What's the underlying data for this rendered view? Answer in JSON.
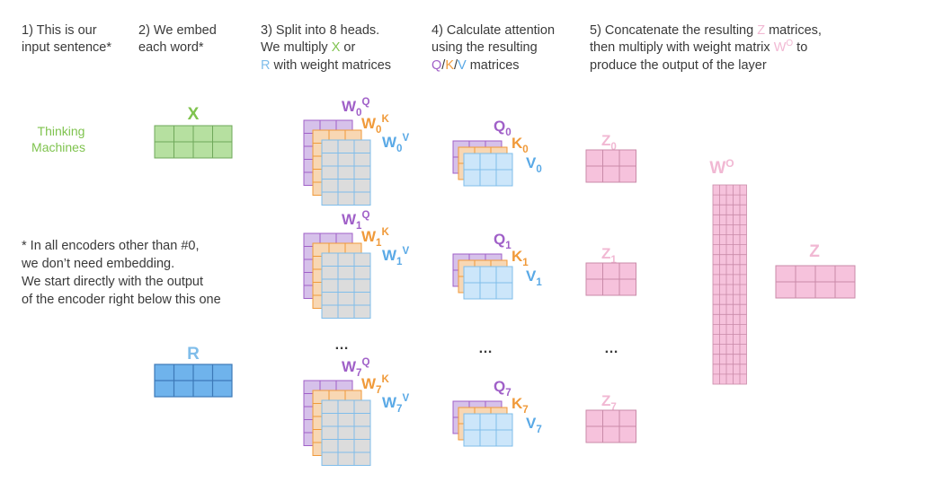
{
  "steps": {
    "s1": [
      "1) This is our",
      "input sentence*"
    ],
    "s2": [
      "2) We embed",
      "each word*"
    ],
    "s3": {
      "l1": "3) Split into 8 heads.",
      "l2_pre": "We multiply ",
      "l2_x": "X",
      "l2_post": " or",
      "l3_r": "R",
      "l3_post": " with weight matrices"
    },
    "s4": {
      "l1": "4) Calculate attention",
      "l2": "using the resulting",
      "l3_q": "Q",
      "l3_s1": "/",
      "l3_k": "K",
      "l3_s2": "/",
      "l3_v": "V",
      "l3_post": " matrices"
    },
    "s5": {
      "l1_pre": "5) Concatenate the resulting ",
      "l1_z": "Z",
      "l1_post": " matrices,",
      "l2_pre": "then multiply with weight matrix ",
      "l2_w": "W",
      "l2_sup": "O",
      "l2_post": " to",
      "l3": "produce the output of the layer"
    }
  },
  "input_words": [
    "Thinking",
    "Machines"
  ],
  "footnote": [
    "* In all encoders other than #0,",
    "we don’t need embedding.",
    "We start directly with the output",
    "of the encoder right below this one"
  ],
  "labels": {
    "x": "X",
    "r": "R",
    "w": "W",
    "q": "Q",
    "k": "K",
    "v": "V",
    "z": "Z",
    "wo_base": "W",
    "wo_sup": "O"
  },
  "heads": [
    {
      "index": "0"
    },
    {
      "index": "1"
    },
    {
      "index": "7"
    }
  ],
  "ellipsis": "…",
  "colors": {
    "green": "#7fc34e",
    "green_fill": "#b6e0a0",
    "green_line": "#6fa85a",
    "blue": "#7fbdea",
    "blue_fill": "#cce6fa",
    "blue_solid": "#6fb3ec",
    "blue_line": "#3d79b8",
    "purple": "#a060c8",
    "purple_fill": "#d6c1ea",
    "orange": "#f09a3a",
    "orange_fill": "#f8d7b3",
    "grey_fill": "#dcdcdc",
    "pink": "#f1b8d3",
    "pink_fill": "#f6c2dc",
    "pink_line": "#c98aa8",
    "v_label": "#5aa9e6",
    "text": "#3a3a3a"
  }
}
